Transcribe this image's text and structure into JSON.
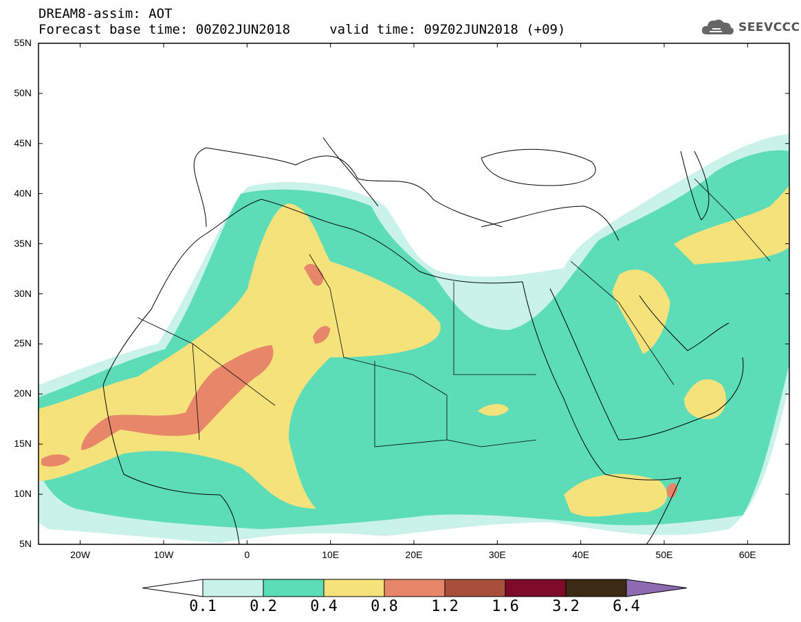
{
  "header": {
    "title_line1": "DREAM8-assim: AOT",
    "title_line2": "Forecast base time: 00Z02JUN2018     valid time: 09Z02JUN2018 (+09)"
  },
  "logo": {
    "text": "SEEVCCC",
    "icon": "cloud-icon"
  },
  "map": {
    "lon_min": -25,
    "lon_max": 65,
    "lat_min": 5,
    "lat_max": 55,
    "lat_labels": [
      "5N",
      "10N",
      "15N",
      "20N",
      "25N",
      "30N",
      "35N",
      "40N",
      "45N",
      "50N",
      "55N"
    ],
    "lat_values": [
      5,
      10,
      15,
      20,
      25,
      30,
      35,
      40,
      45,
      50,
      55
    ],
    "lon_labels": [
      "20W",
      "10W",
      "0",
      "10E",
      "20E",
      "30E",
      "40E",
      "50E",
      "60E"
    ],
    "lon_values": [
      -20,
      -10,
      0,
      10,
      20,
      30,
      40,
      50,
      60
    ]
  },
  "legend": {
    "thresholds": [
      "0.1",
      "0.2",
      "0.4",
      "0.8",
      "1.2",
      "1.6",
      "3.2",
      "6.4"
    ],
    "colors": [
      "#c8f2ea",
      "#5ddcb8",
      "#f5e27a",
      "#e8866a",
      "#a84e3c",
      "#7e0a2a",
      "#3b2a14",
      "#8e6ab0"
    ]
  }
}
